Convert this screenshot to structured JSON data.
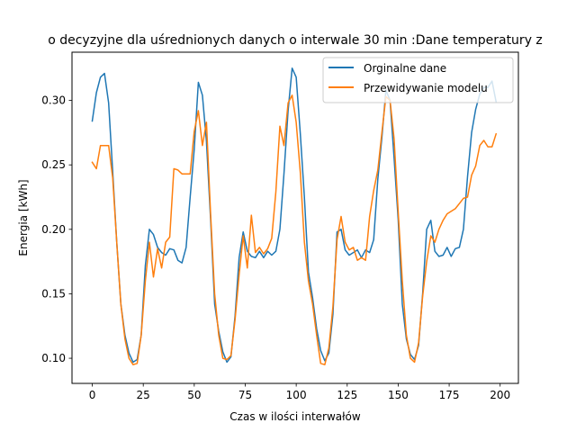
{
  "chart_data": {
    "type": "line",
    "title": "o decyzyjne dla uśrednionych danych o interwale 30 min :Dane temperatury z",
    "xlabel": "Czas w ilości interwałów",
    "ylabel": "Energia [kWh]",
    "xlim": [
      -9.95,
      208.95
    ],
    "ylim": [
      0.0805,
      0.3374
    ],
    "xticks": [
      0,
      25,
      50,
      75,
      100,
      125,
      150,
      175,
      200
    ],
    "xtick_labels": [
      "0",
      "25",
      "50",
      "75",
      "100",
      "125",
      "150",
      "175",
      "200"
    ],
    "yticks": [
      0.1,
      0.15,
      0.2,
      0.25,
      0.3
    ],
    "ytick_labels": [
      "0.10",
      "0.15",
      "0.20",
      "0.25",
      "0.30"
    ],
    "grid": false,
    "legend_position": "top-right",
    "x": [
      0,
      2,
      4,
      6,
      8,
      10,
      12,
      14,
      16,
      18,
      20,
      22,
      24,
      26,
      28,
      30,
      32,
      34,
      36,
      38,
      40,
      42,
      44,
      46,
      48,
      50,
      52,
      54,
      56,
      58,
      60,
      62,
      64,
      66,
      68,
      70,
      72,
      74,
      76,
      78,
      80,
      82,
      84,
      86,
      88,
      90,
      92,
      94,
      96,
      98,
      100,
      102,
      104,
      106,
      108,
      110,
      112,
      114,
      116,
      118,
      120,
      122,
      124,
      126,
      128,
      130,
      132,
      134,
      136,
      138,
      140,
      142,
      144,
      146,
      148,
      150,
      152,
      154,
      156,
      158,
      160,
      162,
      164,
      166,
      168,
      170,
      172,
      174,
      176,
      178,
      180,
      182,
      184,
      186,
      188,
      190,
      192,
      194,
      196,
      198
    ],
    "series": [
      {
        "name": "Orginalne dane",
        "color": "#1f77b4",
        "values": [
          0.284,
          0.306,
          0.318,
          0.321,
          0.298,
          0.245,
          0.19,
          0.142,
          0.118,
          0.104,
          0.097,
          0.099,
          0.118,
          0.172,
          0.2,
          0.196,
          0.186,
          0.182,
          0.18,
          0.185,
          0.184,
          0.176,
          0.174,
          0.186,
          0.225,
          0.262,
          0.314,
          0.304,
          0.268,
          0.208,
          0.142,
          0.121,
          0.105,
          0.097,
          0.101,
          0.133,
          0.178,
          0.198,
          0.183,
          0.179,
          0.178,
          0.183,
          0.178,
          0.183,
          0.18,
          0.183,
          0.2,
          0.243,
          0.292,
          0.325,
          0.318,
          0.274,
          0.225,
          0.167,
          0.147,
          0.123,
          0.106,
          0.098,
          0.104,
          0.134,
          0.198,
          0.2,
          0.184,
          0.18,
          0.182,
          0.184,
          0.178,
          0.184,
          0.182,
          0.192,
          0.239,
          0.271,
          0.308,
          0.3,
          0.255,
          0.208,
          0.142,
          0.115,
          0.103,
          0.099,
          0.11,
          0.15,
          0.2,
          0.207,
          0.183,
          0.179,
          0.18,
          0.186,
          0.179,
          0.185,
          0.186,
          0.2,
          0.241,
          0.275,
          0.293,
          0.305,
          0.31,
          0.31,
          0.315,
          0.299
        ]
      },
      {
        "name": "Przewidywanie modelu",
        "color": "#ff7f0e",
        "values": [
          0.252,
          0.247,
          0.265,
          0.265,
          0.265,
          0.24,
          0.19,
          0.142,
          0.115,
          0.1,
          0.095,
          0.096,
          0.118,
          0.16,
          0.19,
          0.163,
          0.185,
          0.17,
          0.19,
          0.194,
          0.247,
          0.246,
          0.243,
          0.243,
          0.243,
          0.276,
          0.292,
          0.265,
          0.283,
          0.212,
          0.15,
          0.118,
          0.1,
          0.099,
          0.102,
          0.13,
          0.165,
          0.195,
          0.17,
          0.211,
          0.182,
          0.186,
          0.181,
          0.185,
          0.193,
          0.229,
          0.28,
          0.265,
          0.298,
          0.304,
          0.283,
          0.244,
          0.19,
          0.16,
          0.142,
          0.118,
          0.096,
          0.095,
          0.108,
          0.14,
          0.192,
          0.21,
          0.19,
          0.184,
          0.186,
          0.176,
          0.178,
          0.176,
          0.21,
          0.23,
          0.246,
          0.275,
          0.303,
          0.3,
          0.27,
          0.214,
          0.16,
          0.118,
          0.1,
          0.097,
          0.112,
          0.148,
          0.175,
          0.195,
          0.19,
          0.2,
          0.207,
          0.212,
          0.214,
          0.216,
          0.22,
          0.224,
          0.225,
          0.242,
          0.249,
          0.265,
          0.269,
          0.264,
          0.264,
          0.274
        ]
      }
    ]
  }
}
